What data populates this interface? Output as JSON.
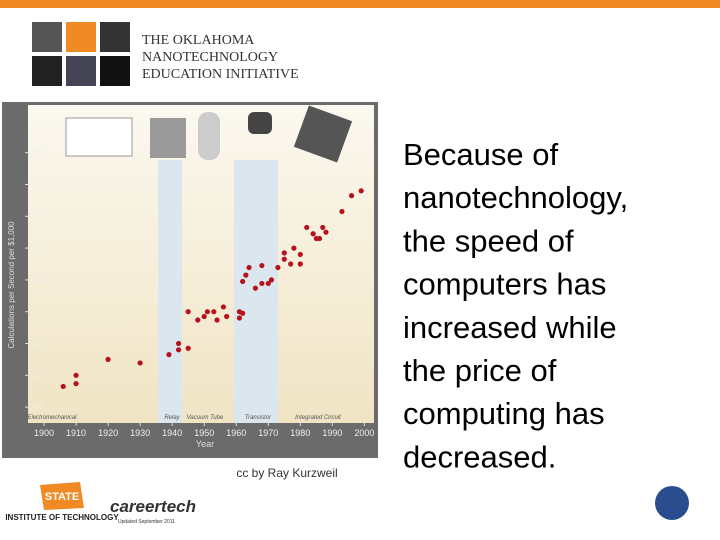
{
  "header": {
    "title_lines": [
      "THE OKLAHOMA",
      "NANOTECHNOLOGY",
      "EDUCATION INITIATIVE"
    ]
  },
  "figure": {
    "type": "scatter",
    "y_label": "Calculations per Second per $1,000",
    "x_label": "Year",
    "eras": [
      "Electromechanical",
      "Relay",
      "Vacuum Tube",
      "Transistor",
      "Integrated Circuit"
    ],
    "credit": "cc by Ray Kurzweil",
    "log_y": true,
    "color": "#b5121b",
    "x": [
      1906,
      1910,
      1910,
      1920,
      1930,
      1939,
      1942,
      1942,
      1945,
      1945,
      1948,
      1950,
      1951,
      1953,
      1954,
      1956,
      1957,
      1961,
      1961,
      1962,
      1962,
      1963,
      1964,
      1966,
      1968,
      1968,
      1970,
      1971,
      1973,
      1975,
      1975,
      1977,
      1978,
      1980,
      1980,
      1982,
      1984,
      1985,
      1986,
      1987,
      1988,
      1993,
      1996,
      1999
    ],
    "values": [
      2e-05,
      0.0001,
      3e-05,
      0.001,
      0.0006,
      0.002,
      0.004,
      0.01,
      0.005,
      1,
      0.3,
      0.5,
      1,
      1,
      0.3,
      2,
      0.5,
      0.4,
      1,
      0.8,
      80,
      200,
      600,
      30,
      800,
      60,
      60,
      100,
      600,
      2000,
      5000,
      1000,
      10000,
      1000,
      4000,
      200000,
      80000,
      40000,
      40000,
      200000,
      100000,
      2000000,
      20000000,
      40000000
    ],
    "xlim": [
      1895,
      2003
    ],
    "xticks": [
      1900,
      1910,
      1920,
      1930,
      1940,
      1950,
      1960,
      1970,
      1980,
      1990,
      2000
    ],
    "ylim": [
      1e-07,
      10000000000000.0
    ],
    "yticks": [
      {
        "value": 1e-06,
        "label": "10",
        "exponent": "-6"
      },
      {
        "value": 0.0001,
        "label": "10",
        "exponent": "-4"
      },
      {
        "value": 0.01,
        "label": "10",
        "exponent": "-2"
      },
      1,
      {
        "value": 100,
        "label": "10",
        "exponent": "2"
      },
      {
        "value": 10000,
        "label": "10",
        "exponent": "4"
      },
      {
        "value": 1000000,
        "label": "10",
        "exponent": "6"
      },
      {
        "value": 100000000,
        "label": "10",
        "exponent": "8"
      },
      {
        "value": 10000000000,
        "label": "10",
        "exponent": "10"
      }
    ]
  },
  "body": {
    "lines": [
      "Because of",
      "nanotechnology,",
      "the speed of",
      "computers has",
      "increased while",
      "the price of",
      "computing has",
      "decreased."
    ]
  },
  "footer": {
    "state_logo": "STATE",
    "institute": "INSTITUTE OF TECHNOLOGY",
    "careertech": "careertech",
    "updated": "Updated September 2011"
  }
}
